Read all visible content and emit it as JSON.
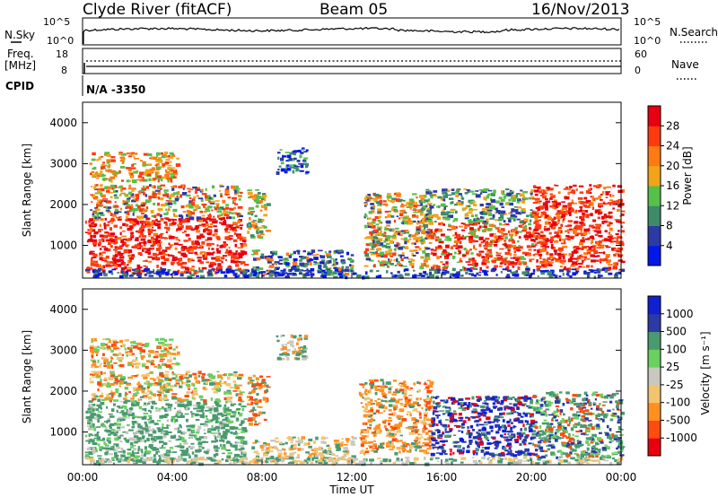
{
  "header": {
    "station": "Clyde River (fitACF)",
    "beam": "Beam 05",
    "date": "16/Nov/2013"
  },
  "top_panels": {
    "nsky_label": "N.Sky",
    "nsky_ticks": [
      "10^5",
      "10^0"
    ],
    "nsearch_label": "N.Search",
    "nsearch_ticks": [
      "10^5",
      "10^0"
    ],
    "freq_label": "Freq.",
    "freq_unit": "[MHz]",
    "freq_ticks": [
      "18",
      "8"
    ],
    "nave_label": "Nave",
    "nave_ticks": [
      "60",
      "0"
    ],
    "cpid_label": "CPID",
    "cpid_value": "N/A  -3350"
  },
  "colors": {
    "power_scale": [
      "#0018e8",
      "#2c3aa6",
      "#3e8a6a",
      "#55c04a",
      "#f2a418",
      "#ff7a12",
      "#ff3a10",
      "#e80010"
    ],
    "velocity_scale": [
      "#e80010",
      "#ff4a10",
      "#ff9020",
      "#f2c470",
      "#c8c8c0",
      "#6ad060",
      "#4a9a70",
      "#2c3aa6",
      "#1020d0"
    ]
  },
  "chart_data": [
    {
      "type": "heatmap",
      "panel": "power",
      "ylabel": "Slant Range [km]",
      "yticks": [
        "1000",
        "2000",
        "3000",
        "4000"
      ],
      "ylim": [
        200,
        4500
      ],
      "colorbar_label": "Power [dB]",
      "colorbar_ticks": [
        "4",
        "8",
        "12",
        "16",
        "20",
        "24",
        "28"
      ],
      "colorbar_range": [
        0,
        30
      ]
    },
    {
      "type": "heatmap",
      "panel": "velocity",
      "ylabel": "Slant Range [km]",
      "yticks": [
        "1000",
        "2000",
        "3000",
        "4000"
      ],
      "ylim": [
        200,
        4500
      ],
      "colorbar_label": "Velocity [m s⁻¹]",
      "colorbar_ticks": [
        "1000",
        "500",
        "100",
        "25",
        "-25",
        "-100",
        "-500",
        "-1000"
      ]
    }
  ],
  "xaxis": {
    "label": "Time UT",
    "ticks": [
      "00:00",
      "04:00",
      "08:00",
      "12:00",
      "16:00",
      "20:00",
      "00:00"
    ]
  }
}
